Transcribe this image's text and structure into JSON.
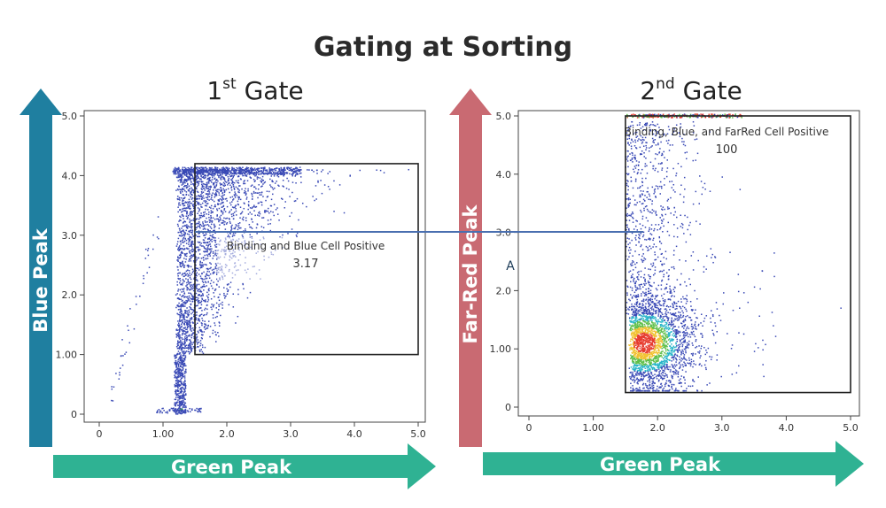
{
  "title": "Gating at Sorting",
  "colors": {
    "blue_arrow": "#1f7fa0",
    "red_arrow": "#c96a72",
    "green_arrow": "#2fb293",
    "dots": "#3949b5",
    "connector": "#4a6fb0"
  },
  "chart_data": [
    {
      "type": "scatter",
      "heading": {
        "base": "1",
        "sup": "st",
        "text": "Gate"
      },
      "xlabel": "Green Peak",
      "ylabel": "Blue Peak",
      "xlim": [
        0,
        5
      ],
      "ylim": [
        0,
        5
      ],
      "x_ticks": [
        0,
        1,
        2,
        3,
        4,
        5
      ],
      "x_tick_labels": [
        "0",
        "1.00",
        "2.0",
        "3.0",
        "4.0",
        "5.0"
      ],
      "y_ticks": [
        0,
        1,
        2,
        3,
        4,
        5
      ],
      "y_tick_labels": [
        "0",
        "1.00",
        "2.0",
        "3.0",
        "4.0",
        "5.0"
      ],
      "gate": {
        "x0": 1.5,
        "x1": 5.0,
        "y0": 1.0,
        "y1": 4.2,
        "label": "Binding and Blue Cell Positive",
        "value": "3.17"
      },
      "density": "vertical stripe at x≈1.2–1.3 from y=0 to 4.1 fanning right to x≈3.2; saturated band at y≈4.1"
    },
    {
      "type": "scatter",
      "heading": {
        "base": "2",
        "sup": "nd",
        "text": "Gate"
      },
      "xlabel": "Green Peak",
      "ylabel": "Far-Red Peak",
      "xlim": [
        0,
        5
      ],
      "ylim": [
        0,
        5
      ],
      "x_ticks": [
        0,
        1,
        2,
        3,
        4,
        5
      ],
      "x_tick_labels": [
        "0",
        "1.00",
        "2.0",
        "3.0",
        "4.0",
        "5.0"
      ],
      "y_ticks": [
        0,
        1,
        2,
        3,
        4,
        5
      ],
      "y_tick_labels": [
        "0",
        "1.00",
        "2.0",
        "3.0",
        "4.0",
        "5.0"
      ],
      "gate": {
        "x0": 1.5,
        "x1": 5.0,
        "y0": 0.25,
        "y1": 5.0,
        "label": "Binding, Blue, and FarRed Cell Positive",
        "value": "100"
      },
      "marker": "A",
      "density": "dense cluster centred near x≈1.8, y≈1.1 (green/yellow/red core), sparse spread up to y=5"
    }
  ]
}
